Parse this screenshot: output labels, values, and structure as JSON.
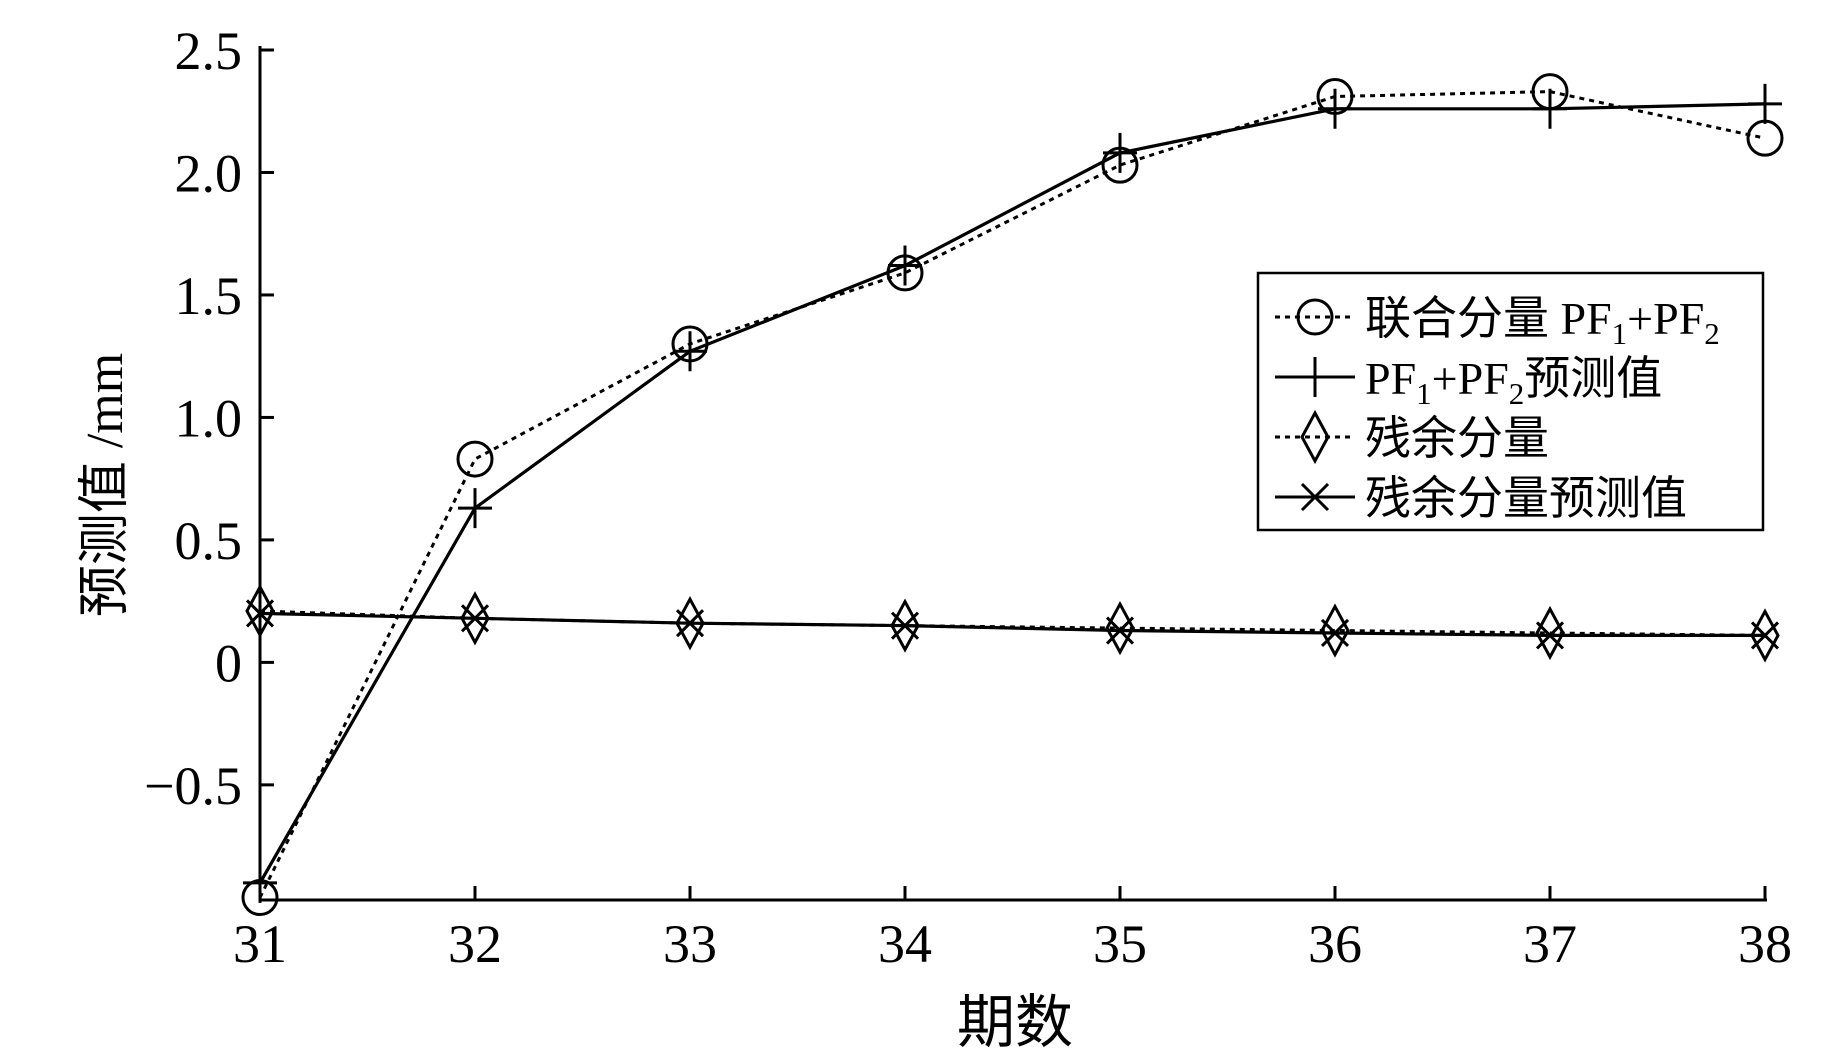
{
  "chart_data": {
    "type": "line",
    "title": "",
    "xlabel": "期数",
    "ylabel": "预测值 /mm",
    "x": [
      31,
      32,
      33,
      34,
      35,
      36,
      37,
      38
    ],
    "xlim": [
      31,
      38
    ],
    "ylim": [
      -0.97,
      2.5
    ],
    "y_ticks": [
      2.5,
      2.0,
      1.5,
      1.0,
      0.5,
      0,
      -0.5
    ],
    "y_tick_labels": [
      "2.5",
      "2.0",
      "1.5",
      "1.0",
      "0.5",
      "0",
      "−0.5"
    ],
    "x_tick_labels": [
      "31",
      "32",
      "33",
      "34",
      "35",
      "36",
      "37",
      "38"
    ],
    "grid": false,
    "legend_position": "right",
    "series": [
      {
        "name": "联合分量 PF1+PF2",
        "legend": {
          "main": "联合分量 PF",
          "s1": "1",
          "mid": "+PF",
          "s2": "2",
          "tail": ""
        },
        "marker": "circle",
        "line": "dotted",
        "values": [
          -0.96,
          0.83,
          1.3,
          1.59,
          2.03,
          2.31,
          2.33,
          2.14
        ]
      },
      {
        "name": "PF1+PF2预测值",
        "legend": {
          "main": "PF",
          "s1": "1",
          "mid": "+PF",
          "s2": "2",
          "tail": "预测值"
        },
        "marker": "plus",
        "line": "solid",
        "values": [
          -0.9,
          0.63,
          1.27,
          1.62,
          2.08,
          2.26,
          2.26,
          2.28
        ]
      },
      {
        "name": "残余分量",
        "legend": {
          "main": "残余分量",
          "s1": "",
          "mid": "",
          "s2": "",
          "tail": ""
        },
        "marker": "diamond",
        "line": "dotted",
        "values": [
          0.21,
          0.18,
          0.16,
          0.15,
          0.14,
          0.13,
          0.12,
          0.11
        ]
      },
      {
        "name": "残余分量预测值",
        "legend": {
          "main": "残余分量预测值",
          "s1": "",
          "mid": "",
          "s2": "",
          "tail": ""
        },
        "marker": "x",
        "line": "solid",
        "values": [
          0.2,
          0.18,
          0.16,
          0.15,
          0.13,
          0.12,
          0.11,
          0.11
        ]
      }
    ]
  }
}
